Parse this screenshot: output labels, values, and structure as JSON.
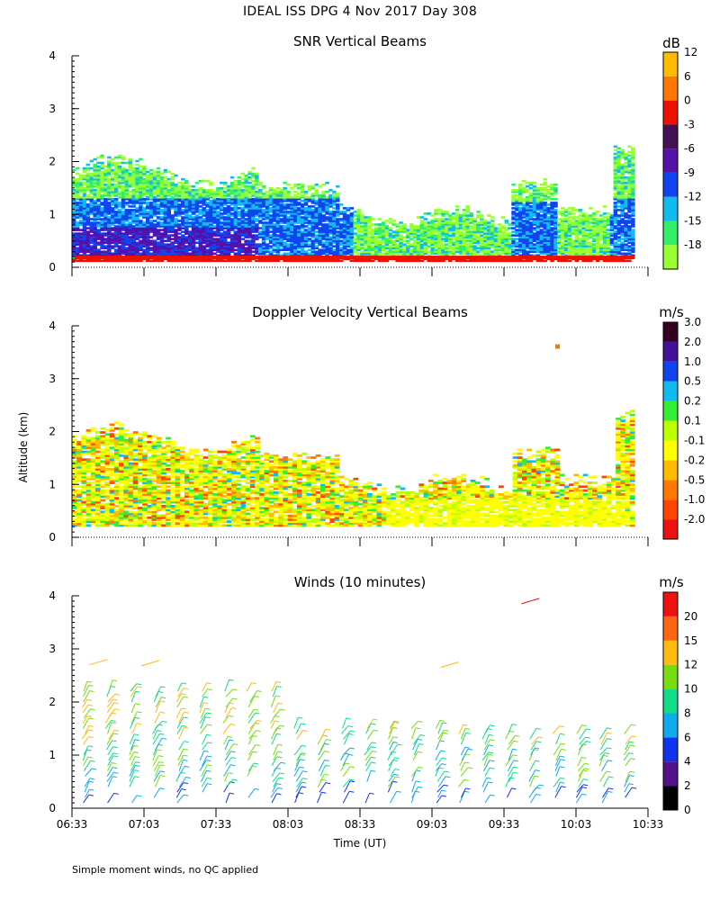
{
  "header": {
    "title": "IDEAL ISS DPG    4 Nov 2017 Day 308",
    "ylabel": "Altitude (km)",
    "xlabel": "Time (UT)",
    "footnote": "Simple moment winds, no QC applied"
  },
  "chart_data": [
    {
      "type": "heatmap",
      "title": "SNR Vertical Beams",
      "unit": "dB",
      "xlabel": "Time (UT)",
      "ylabel": "Altitude (km)",
      "ylim": [
        0,
        4
      ],
      "yticks": [
        "0",
        "1",
        "2",
        "3",
        "4"
      ],
      "colorbar": {
        "labels": [
          "-18",
          "-15",
          "-12",
          "-9",
          "-6",
          "-3",
          "0",
          "6",
          "12"
        ],
        "colors": [
          "#99ff33",
          "#33ee66",
          "#11bbee",
          "#1144ee",
          "#5511aa",
          "#441155",
          "#ee1100",
          "#ff7700",
          "#ffbb00"
        ]
      },
      "cells": [
        [
          [
            0,
            3,
            3,
            3,
            3,
            3,
            3,
            3,
            3,
            3,
            2,
            2,
            2,
            2,
            3,
            3,
            3,
            3,
            3,
            3,
            3,
            3,
            3,
            3,
            3,
            3,
            3,
            3,
            3,
            3,
            3,
            3,
            3,
            3,
            3,
            3,
            3,
            3,
            3,
            3
          ]
        ],
        [
          [
            2,
            3,
            2,
            2,
            2,
            2,
            3,
            3,
            2,
            3,
            1,
            1,
            1,
            1,
            3,
            2,
            2,
            2,
            2,
            2,
            2,
            2,
            2,
            1,
            2,
            2,
            1,
            2,
            1,
            1,
            3,
            3,
            3,
            2,
            2,
            2,
            2,
            2,
            3,
            3
          ]
        ],
        [
          [
            2,
            3,
            2,
            2,
            2,
            2,
            3,
            2,
            2,
            3,
            1,
            1,
            1,
            1,
            3,
            2,
            2,
            2,
            2,
            2,
            2,
            2,
            2,
            1,
            2,
            1,
            1,
            1,
            1,
            1,
            3,
            3,
            3,
            2,
            2,
            2,
            2,
            2,
            3,
            3
          ]
        ],
        [
          [
            1,
            1,
            1,
            1,
            1,
            1,
            1,
            1,
            1,
            1,
            1,
            1,
            1,
            1,
            1,
            1,
            1,
            1,
            1,
            1,
            1,
            1,
            1,
            1,
            1,
            1,
            1,
            1,
            1,
            1,
            1,
            1,
            1,
            1,
            1,
            1,
            1,
            1,
            1,
            3
          ]
        ]
      ],
      "cell_note": "values are color-scale indices per time column"
    },
    {
      "type": "heatmap",
      "title": "Doppler Velocity Vertical Beams",
      "unit": "m/s",
      "xlabel": "Time (UT)",
      "ylabel": "Altitude (km)",
      "ylim": [
        0,
        4
      ],
      "yticks": [
        "0",
        "1",
        "2",
        "3",
        "4"
      ],
      "colorbar": {
        "labels": [
          "-2.0",
          "-1.0",
          "-0.5",
          "-0.2",
          "-0.1",
          "0.1",
          "0.2",
          "0.5",
          "1.0",
          "2.0",
          "3.0"
        ],
        "colors": [
          "#ee1111",
          "#ff4400",
          "#ff7700",
          "#ffbb00",
          "#ffff00",
          "#bbff00",
          "#33ee33",
          "#11bbee",
          "#1144ee",
          "#441199",
          "#330022"
        ]
      }
    },
    {
      "type": "scatter",
      "title": "Winds (10 minutes)",
      "unit": "m/s",
      "xlabel": "Time (UT)",
      "ylabel": "Altitude (km)",
      "ylim": [
        0,
        4
      ],
      "yticks": [
        "0",
        "1",
        "2",
        "3",
        "4"
      ],
      "xticks": [
        "06:33",
        "07:03",
        "07:33",
        "08:03",
        "08:33",
        "09:03",
        "09:33",
        "10:03",
        "10:33"
      ],
      "colorbar": {
        "labels": [
          "0",
          "2",
          "4",
          "6",
          "8",
          "10",
          "12",
          "15",
          "20"
        ],
        "colors": [
          "#000000",
          "#55118a",
          "#1133ee",
          "#11aaee",
          "#11dd88",
          "#77dd11",
          "#ffbb11",
          "#ff6611",
          "#ee1111"
        ]
      }
    }
  ]
}
